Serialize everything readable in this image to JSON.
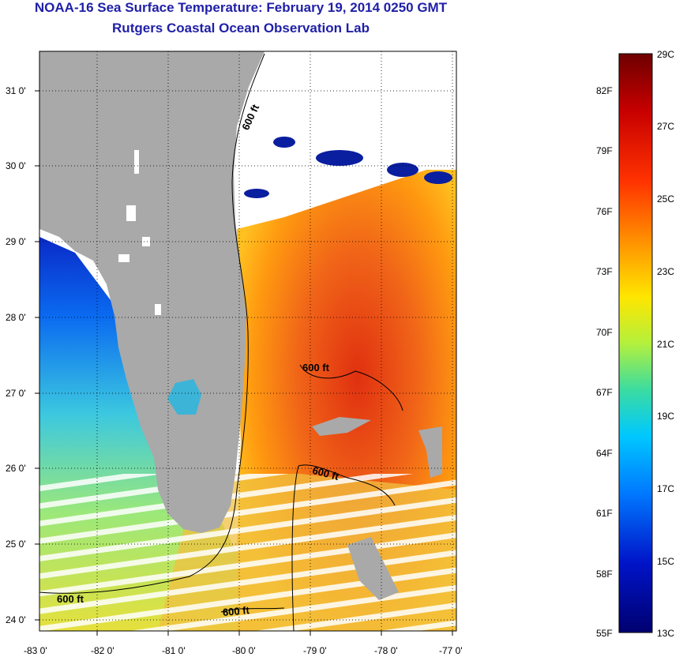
{
  "title": "NOAA-16 Sea Surface Temperature:  February 19, 2014 0250 GMT",
  "subtitle": "Rutgers Coastal Ocean Observation Lab",
  "longitude_ticks": [
    "-83 0'",
    "-82 0'",
    "-81 0'",
    "-80 0'",
    "-79 0'",
    "-78 0'",
    "-77 0'"
  ],
  "latitude_ticks": [
    "31 0'",
    "30 0'",
    "29 0'",
    "28 0'",
    "27 0'",
    "26 0'",
    "25 0'",
    "24 0'"
  ],
  "contour_labels": [
    "600 ft",
    "600 ft",
    "600 ft",
    "600 ft",
    "600 ft"
  ],
  "colorbar": {
    "celsius_labels": [
      "29C",
      "27C",
      "25C",
      "23C",
      "21C",
      "19C",
      "17C",
      "15C",
      "13C"
    ],
    "fahrenheit_labels": [
      "82F",
      "79F",
      "76F",
      "73F",
      "70F",
      "67F",
      "64F",
      "61F",
      "58F",
      "55F"
    ],
    "colors": [
      "#7a0000",
      "#c80000",
      "#ff3c00",
      "#ff9600",
      "#ffe600",
      "#b4f03c",
      "#3cdca0",
      "#00c8ff",
      "#0078ff",
      "#0014c8",
      "#000078"
    ]
  },
  "colors": {
    "land": "#a9a9a9",
    "title": "#1f1fa8",
    "missing_data": "#ffffff"
  }
}
